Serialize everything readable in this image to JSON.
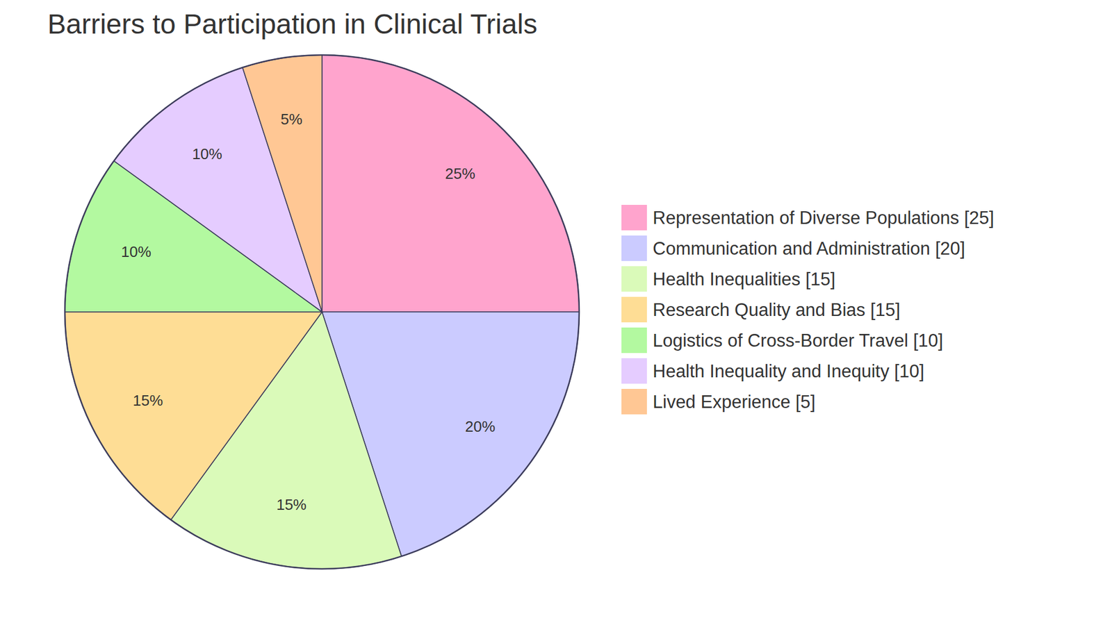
{
  "chart_data": {
    "type": "pie",
    "title": "Barriers to Participation in Clinical Trials",
    "categories": [
      "Representation of Diverse Populations [25]",
      "Communication and Administration [20]",
      "Health Inequalities [15]",
      "Research Quality and Bias [15]",
      "Logistics of Cross-Border Travel [10]",
      "Health Inequality and Inequity [10]",
      "Lived Experience [5]"
    ],
    "values": [
      25,
      20,
      15,
      15,
      10,
      10,
      5
    ],
    "value_labels": [
      "25%",
      "20%",
      "15%",
      "15%",
      "10%",
      "10%",
      "5%"
    ],
    "colors": [
      "#ffa4cd",
      "#cbcbff",
      "#dafab9",
      "#fedd95",
      "#b3f9a0",
      "#e5ccff",
      "#ffc794"
    ],
    "data_labels": true,
    "legend": "right"
  }
}
